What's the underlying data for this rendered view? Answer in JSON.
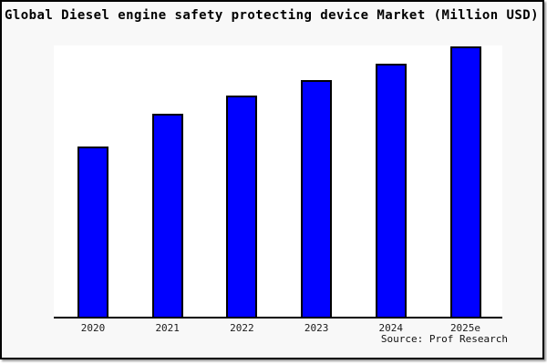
{
  "chart_data": {
    "type": "bar",
    "title": "Global Diesel engine safety protecting device Market (Million USD)",
    "categories": [
      "2020",
      "2021",
      "2022",
      "2023",
      "2024",
      "2025e"
    ],
    "values": [
      62.7,
      75.0,
      81.7,
      87.3,
      93.3,
      99.7
    ],
    "values_note": "relative bar heights in percent of plot height; y-axis has no tick labels in the image",
    "xlabel": "",
    "ylabel": "",
    "ylim": [
      0,
      100
    ],
    "grid": false,
    "legend_position": "none",
    "bar_color": "#0000ff",
    "bar_border_color": "#000000"
  },
  "footer": {
    "source": "Source: Prof Research"
  },
  "colors": {
    "page_background": "#f8f8f8",
    "plot_background": "#ffffff",
    "axis": "#000000",
    "title_text": "#000000",
    "label_text": "#1a1a1a"
  }
}
